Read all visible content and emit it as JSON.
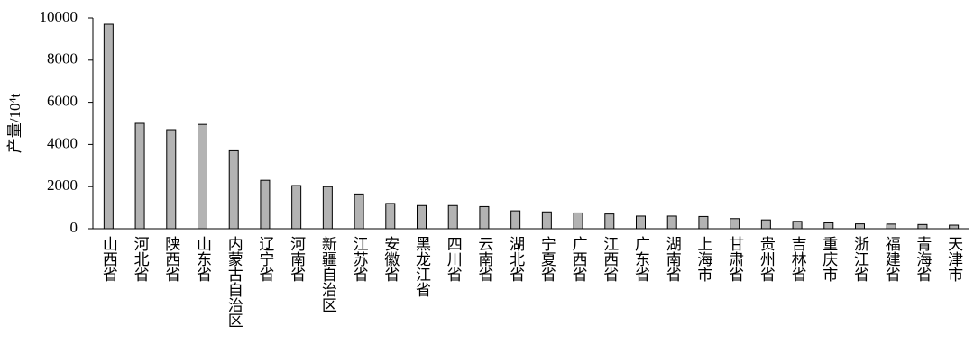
{
  "chart_data": {
    "type": "bar",
    "y_label": "产量/10⁴t",
    "categories": [
      "山西省",
      "河北省",
      "陕西省",
      "山东省",
      "内蒙古自治区",
      "辽宁省",
      "河南省",
      "新疆自治区",
      "江苏省",
      "安徽省",
      "黑龙江省",
      "四川省",
      "云南省",
      "湖北省",
      "宁夏省",
      "广西省",
      "江西省",
      "广东省",
      "湖南省",
      "上海市",
      "甘肃省",
      "贵州省",
      "吉林省",
      "重庆市",
      "浙江省",
      "福建省",
      "青海省",
      "天津市"
    ],
    "values": [
      9700,
      5000,
      4700,
      4950,
      3700,
      2300,
      2050,
      2000,
      1650,
      1200,
      1100,
      1100,
      1050,
      850,
      800,
      750,
      700,
      600,
      600,
      580,
      480,
      420,
      350,
      280,
      230,
      220,
      200,
      170
    ],
    "color": "#b3b3b3",
    "ylim": [
      0,
      10000
    ],
    "yticks": [
      0,
      2000,
      4000,
      6000,
      8000,
      10000
    ],
    "grid": false
  }
}
